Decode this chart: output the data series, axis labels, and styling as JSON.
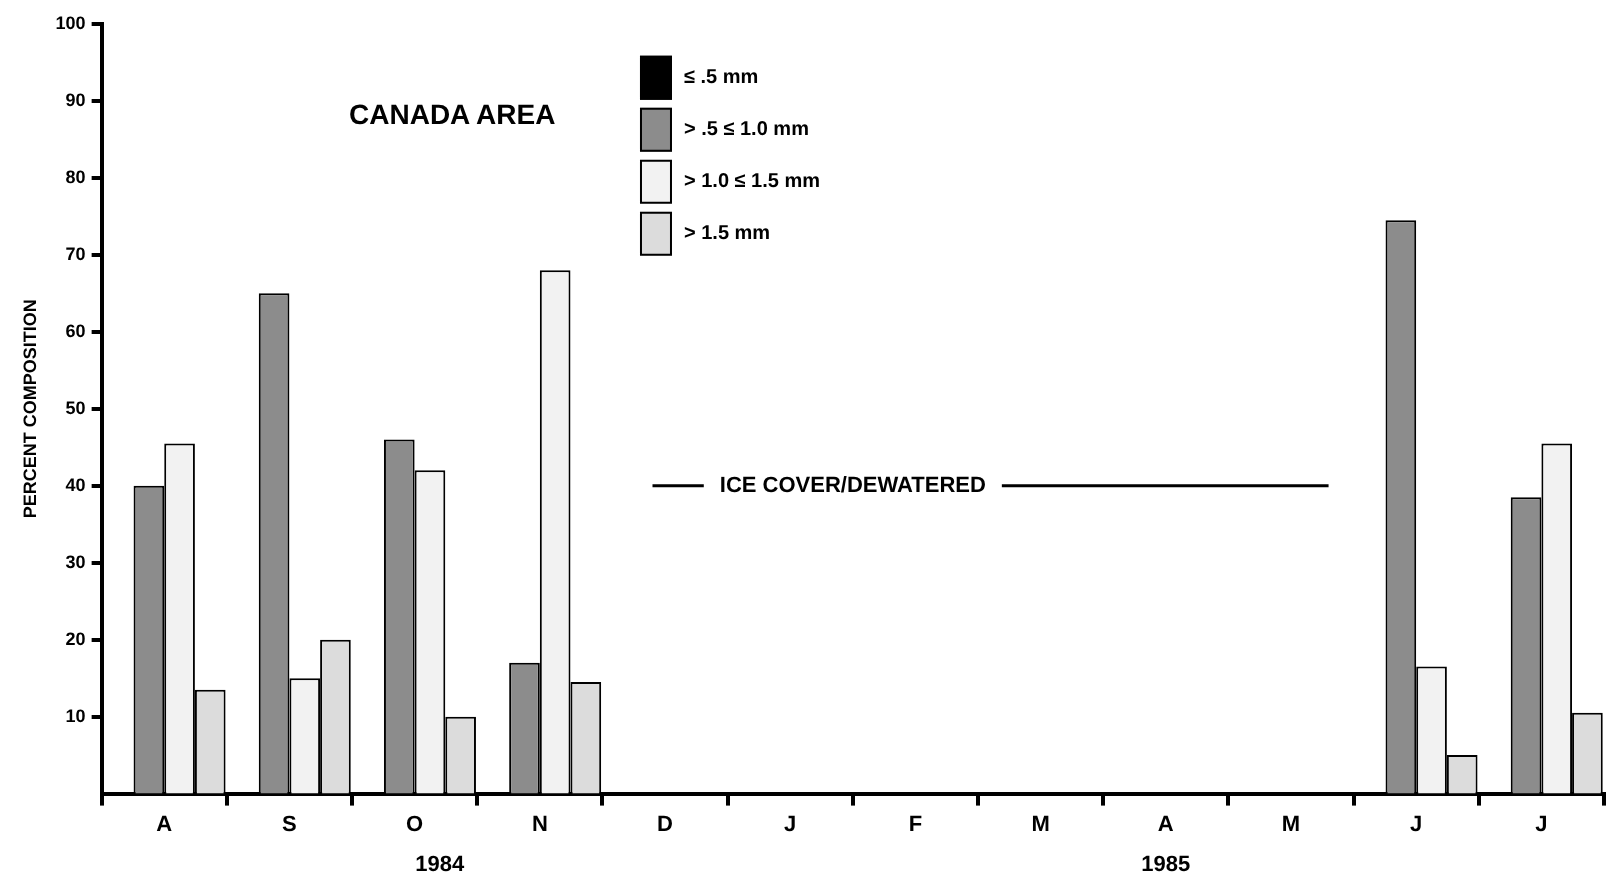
{
  "chart_data": {
    "type": "bar",
    "title": "CANADA AREA",
    "ylabel": "PERCENT COMPOSITION",
    "categories": [
      "A",
      "S",
      "O",
      "N",
      "D",
      "J",
      "F",
      "M",
      "A",
      "M",
      "J",
      "J"
    ],
    "series": [
      {
        "name": "≤ .5 mm",
        "color": "#000000",
        "values": [
          null,
          null,
          null,
          null,
          null,
          null,
          null,
          null,
          null,
          null,
          null,
          null
        ]
      },
      {
        "name": "> .5 ≤ 1.0 mm",
        "color": "#8c8c8c",
        "values": [
          40,
          65,
          46,
          17,
          null,
          null,
          null,
          null,
          null,
          null,
          74.5,
          38.5
        ]
      },
      {
        "name": "> 1.0 ≤ 1.5 mm",
        "color": "#f2f2f2",
        "values": [
          45.5,
          15,
          42,
          68,
          null,
          null,
          null,
          null,
          null,
          null,
          16.5,
          45.5
        ]
      },
      {
        "name": "> 1.5 mm",
        "color": "#dcdcdc",
        "values": [
          13.5,
          20,
          10,
          14.5,
          null,
          null,
          null,
          null,
          null,
          null,
          5,
          10.5
        ]
      }
    ],
    "ylim": [
      0,
      100
    ],
    "yticks": [
      10,
      20,
      30,
      40,
      50,
      60,
      70,
      80,
      90,
      100
    ],
    "grid": false,
    "legend": "top",
    "annotations": [
      "ICE COVER/DEWATERED",
      "1984",
      "1985"
    ]
  }
}
